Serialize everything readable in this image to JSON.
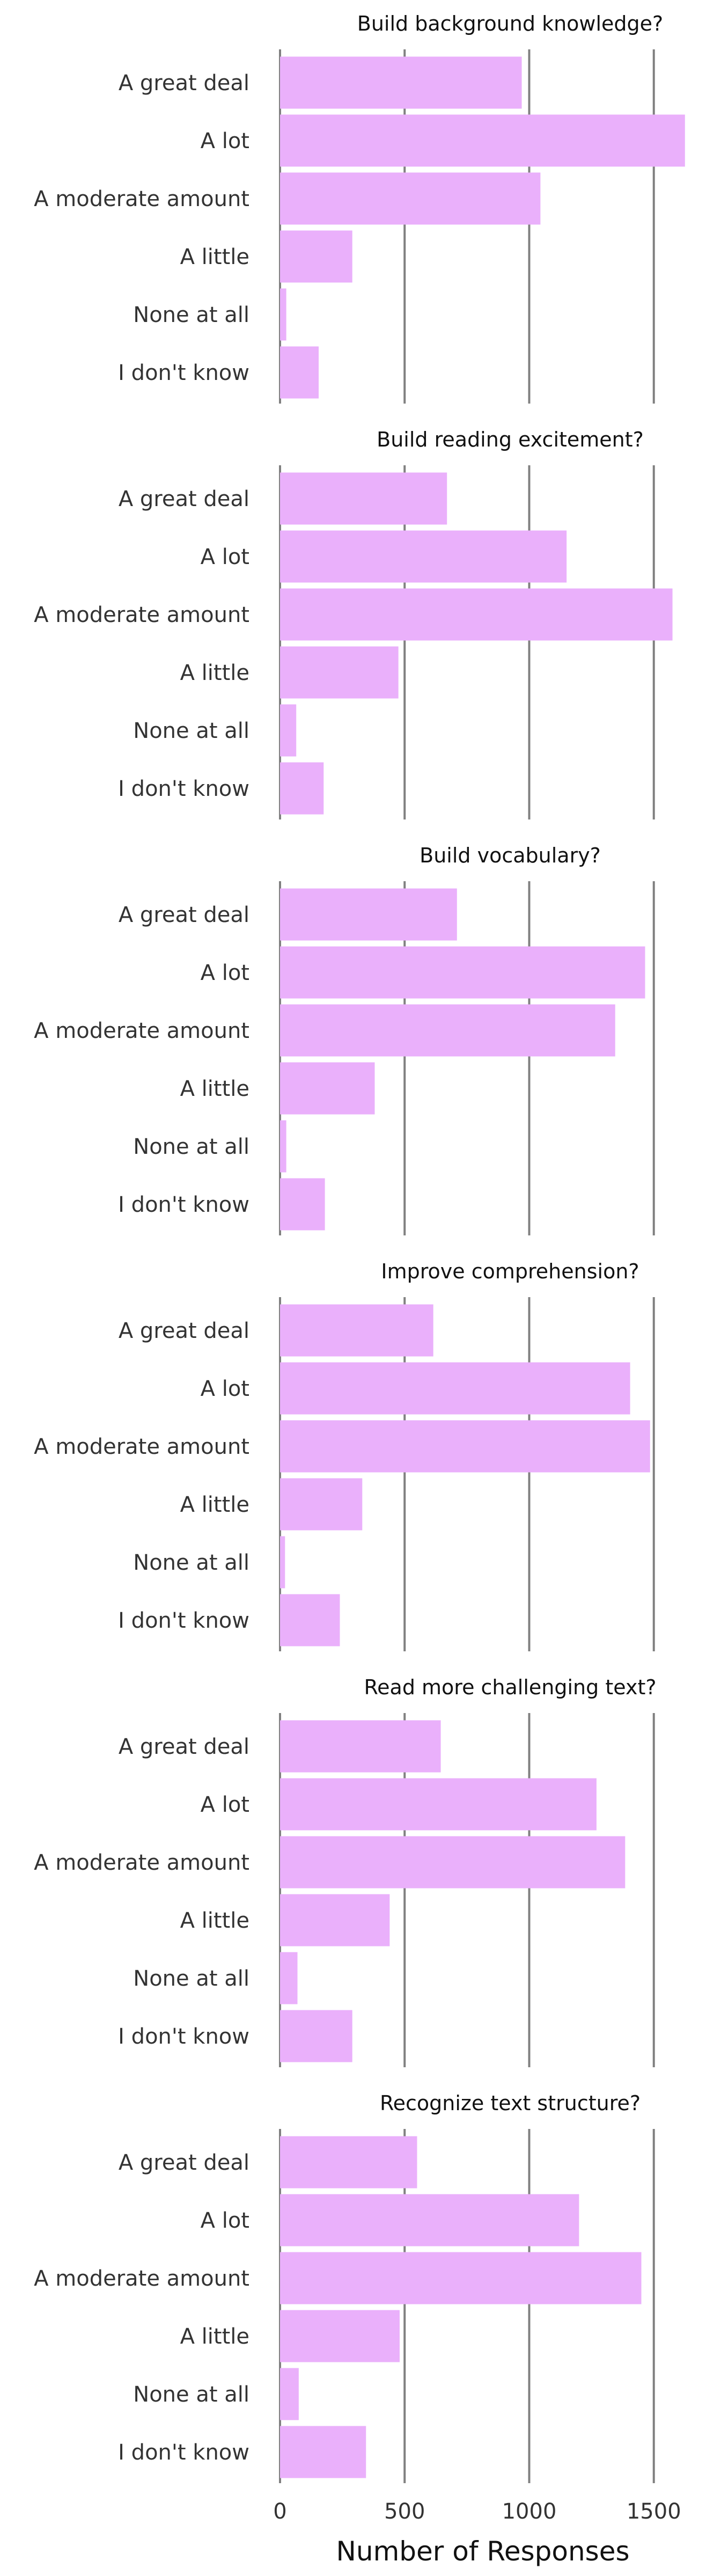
{
  "chart_data": {
    "type": "bar",
    "orientation": "horizontal",
    "bar_color": "#eab0fb",
    "grid_color": "#808080",
    "xlabel": "Number of Responses",
    "xlim": [
      0,
      1640
    ],
    "xticks": [
      0,
      500,
      1000,
      1500
    ],
    "xtick_labels": [
      "0",
      "500",
      "1000",
      "1500"
    ],
    "categories": [
      "A great deal",
      "A lot",
      "A moderate amount",
      "A little",
      "None at all",
      "I don't know"
    ],
    "panels": [
      {
        "title": "Build background knowledge?",
        "values": [
          970,
          1625,
          1045,
          290,
          25,
          155
        ]
      },
      {
        "title": "Build reading excitement?",
        "values": [
          670,
          1150,
          1575,
          475,
          65,
          175
        ]
      },
      {
        "title": "Build vocabulary?",
        "values": [
          710,
          1465,
          1345,
          380,
          25,
          180
        ]
      },
      {
        "title": "Improve comprehension?",
        "values": [
          615,
          1405,
          1485,
          330,
          20,
          240
        ]
      },
      {
        "title": "Read more challenging text?",
        "values": [
          645,
          1270,
          1385,
          440,
          70,
          290
        ]
      },
      {
        "title": "Recognize text structure?",
        "values": [
          550,
          1200,
          1450,
          480,
          75,
          345
        ]
      }
    ]
  }
}
